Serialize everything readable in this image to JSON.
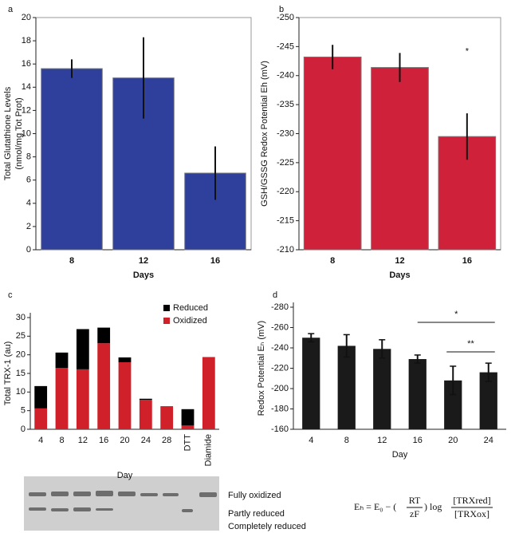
{
  "chart_data": [
    {
      "type": "bar",
      "panel": "a",
      "ylabel": "Total Glutathione Levels",
      "ylabel_sub": "(nmol/mg Tot Prot)",
      "xlabel": "Days",
      "categories": [
        "8",
        "12",
        "16"
      ],
      "values": [
        15.6,
        14.8,
        6.6
      ],
      "errors": [
        0.8,
        3.5,
        2.3
      ],
      "color": "#2f3f9c",
      "ylim": [
        0,
        20
      ],
      "yticks": [
        0,
        2,
        4,
        6,
        8,
        10,
        12,
        14,
        16,
        18,
        20
      ]
    },
    {
      "type": "bar",
      "panel": "b",
      "ylabel": "GSH/GSSG Redox Potential Eh (mV)",
      "xlabel": "Days",
      "categories": [
        "8",
        "12",
        "16"
      ],
      "values": [
        -243.2,
        -241.4,
        -229.5
      ],
      "errors": [
        2.1,
        2.5,
        4.0
      ],
      "color": "#d0213a",
      "ylim": [
        -210,
        -250
      ],
      "yticks": [
        -210,
        -215,
        -220,
        -225,
        -230,
        -235,
        -240,
        -245,
        -250
      ],
      "annotations": [
        "*"
      ]
    },
    {
      "type": "stacked_bar",
      "panel": "c",
      "ylabel": "Total TRX-1 (au)",
      "xlabel": "Day",
      "categories": [
        "4",
        "8",
        "12",
        "16",
        "20",
        "24",
        "28",
        "DTT",
        "Diamide"
      ],
      "series": [
        {
          "name": "Oxidized",
          "color": "#d0202a",
          "values": [
            5.6,
            16.5,
            16.1,
            23.1,
            18.0,
            7.9,
            6.2,
            1.0,
            19.4
          ]
        },
        {
          "name": "Reduced",
          "color": "#000000",
          "values": [
            6.0,
            4.1,
            10.8,
            4.2,
            1.3,
            0.3,
            0,
            4.4,
            0
          ]
        }
      ],
      "ylim": [
        0,
        30
      ],
      "yticks": [
        0,
        5,
        10,
        15,
        20,
        25,
        30
      ],
      "legend": "upper right"
    },
    {
      "type": "bar",
      "panel": "d",
      "ylabel": "Redox Potential Eₕ (mV)",
      "xlabel": "Day",
      "categories": [
        "4",
        "8",
        "12",
        "16",
        "20",
        "24"
      ],
      "values": [
        -250,
        -242,
        -239,
        -229,
        -208,
        -216
      ],
      "errors": [
        4,
        11,
        9,
        4,
        14,
        9
      ],
      "color": "#1a1a1a",
      "ylim": [
        -160,
        -280
      ],
      "yticks": [
        -160,
        -180,
        -200,
        -220,
        -240,
        -260,
        -280
      ],
      "annotations": [
        "*",
        "**"
      ]
    }
  ],
  "gel": {
    "labels": [
      "Fully oxidized",
      "Partly reduced",
      "Completely reduced"
    ]
  },
  "equation": {
    "lhs": "Eₕ  =  E₀ − (",
    "frac1_num": "RT",
    "frac1_den": "zF",
    "mid": ") log",
    "frac2_num": "[TRXred]",
    "frac2_den": "[TRXox]"
  }
}
